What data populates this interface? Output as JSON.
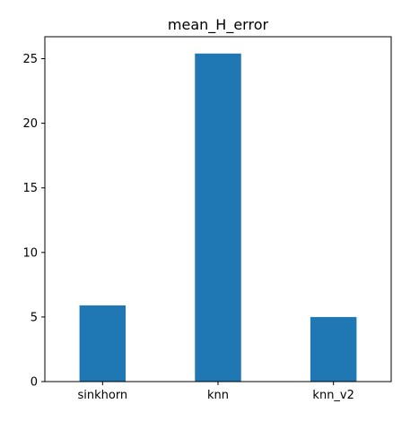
{
  "chart_data": {
    "type": "bar",
    "title": "mean_H_error",
    "xlabel": "",
    "ylabel": "",
    "categories": [
      "sinkhorn",
      "knn",
      "knn_v2"
    ],
    "values": [
      5.9,
      25.4,
      5.0
    ],
    "ylim": [
      0,
      26.7
    ],
    "yticks": [
      0,
      5,
      10,
      15,
      20,
      25
    ],
    "grid": false,
    "bar_color": "#1f77b4"
  }
}
